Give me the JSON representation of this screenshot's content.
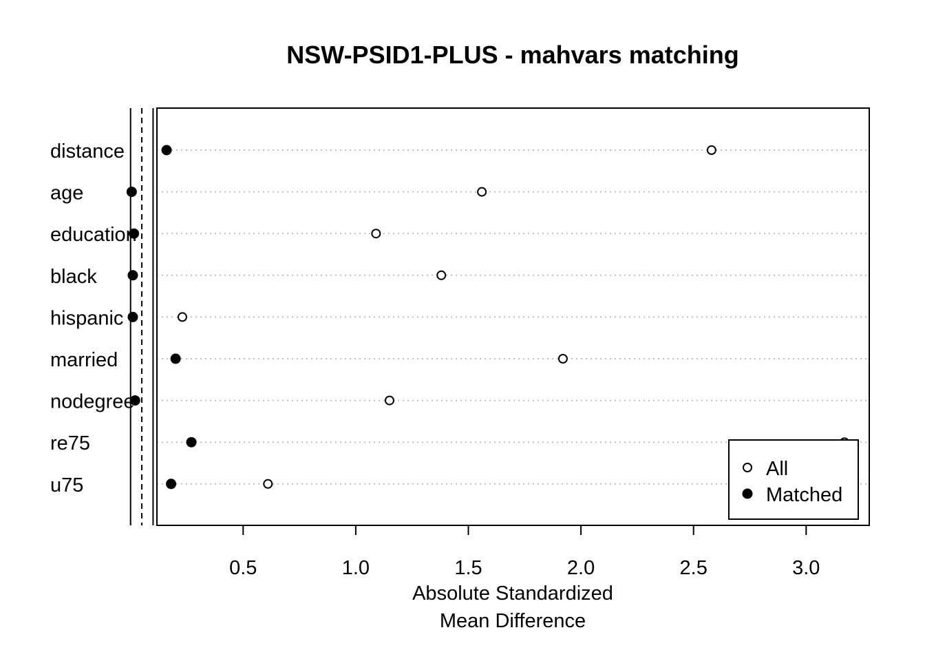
{
  "chart_data": {
    "type": "scatter",
    "title": "NSW-PSID1-PLUS - mahvars matching",
    "xlabel": "Absolute Standardized\nMean Difference",
    "xlabel_lines": [
      "Absolute Standardized",
      "Mean Difference"
    ],
    "ylabel": "",
    "xlim": [
      0.0,
      3.25
    ],
    "xticks": [
      0.5,
      1.0,
      1.5,
      2.0,
      2.5,
      3.0
    ],
    "xtick_labels": [
      "0.5",
      "1.0",
      "1.5",
      "2.0",
      "2.5",
      "3.0"
    ],
    "categories": [
      "distance",
      "age",
      "education",
      "black",
      "hispanic",
      "married",
      "nodegree",
      "re75",
      "u75"
    ],
    "series": [
      {
        "name": "All",
        "marker": "open-circle",
        "values": [
          2.58,
          1.56,
          1.09,
          1.38,
          0.23,
          1.92,
          1.15,
          3.17,
          0.61
        ]
      },
      {
        "name": "Matched",
        "marker": "filled-circle",
        "values": [
          0.16,
          0.005,
          0.015,
          0.01,
          0.01,
          0.2,
          0.02,
          0.27,
          0.18
        ]
      }
    ],
    "reference_lines": [
      {
        "x": 0,
        "style": "solid"
      },
      {
        "x": 0.05,
        "style": "dashed"
      },
      {
        "x": 0.1,
        "style": "solid"
      }
    ],
    "grid": "horizontal dotted",
    "legend": {
      "position": "bottom-right",
      "entries": [
        "All",
        "Matched"
      ]
    }
  }
}
